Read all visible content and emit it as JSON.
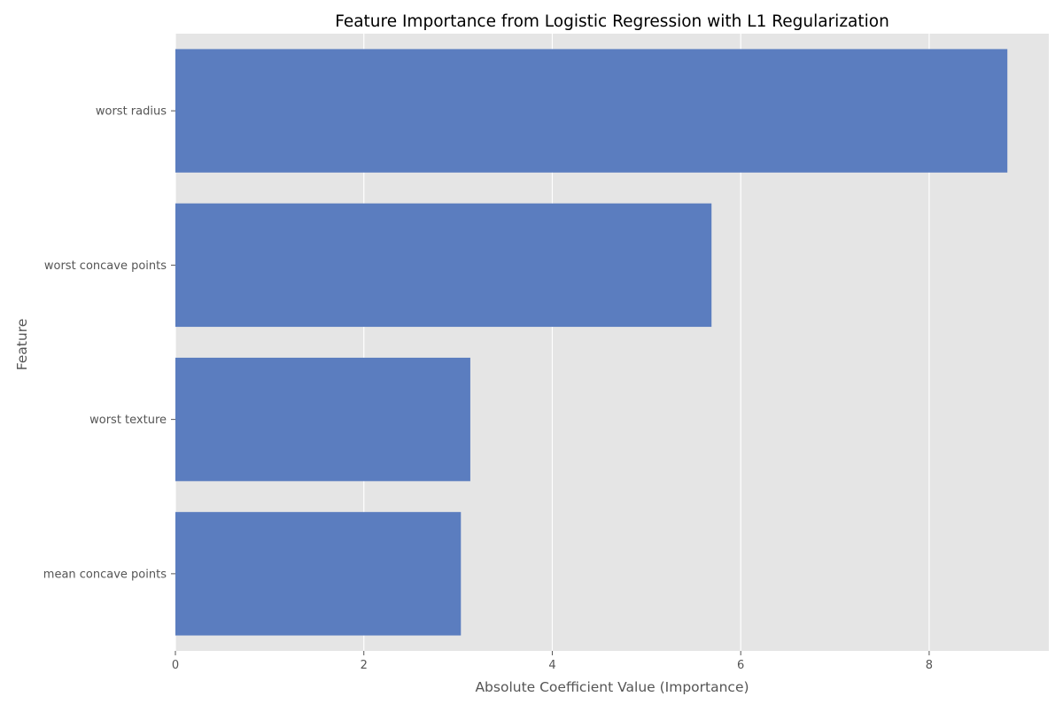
{
  "chart_data": {
    "type": "bar",
    "orientation": "horizontal",
    "title": "Feature Importance from Logistic Regression with L1 Regularization",
    "xlabel": "Absolute Coefficient Value (Importance)",
    "ylabel": "Feature",
    "categories": [
      "worst radius",
      "worst concave points",
      "worst texture",
      "mean concave points"
    ],
    "values": [
      8.83,
      5.69,
      3.13,
      3.03
    ],
    "xlim": [
      0,
      9.27
    ],
    "xticks": [
      0,
      2,
      4,
      6,
      8
    ],
    "grid": true,
    "legend": "none",
    "colors": {
      "bar": "#5b7dbf",
      "plot_background": "#e5e5e5",
      "grid": "#ffffff",
      "text": "#555555",
      "title": "#000000"
    }
  }
}
